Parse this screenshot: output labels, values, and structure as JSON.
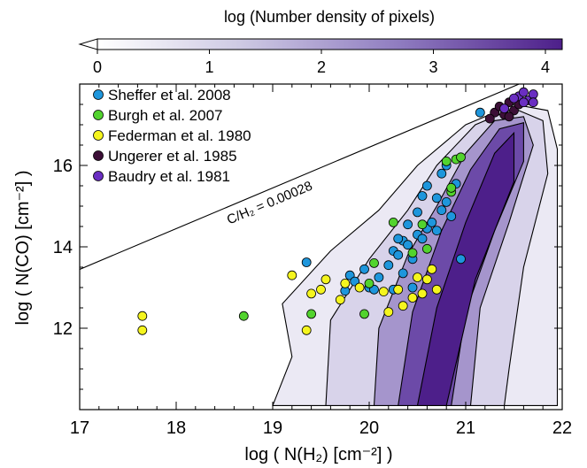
{
  "chart_data": {
    "type": "scatter",
    "title": "",
    "xlabel": "log ( N(H₂) [cm⁻²] )",
    "ylabel": "log ( N(CO) [cm⁻²] )",
    "xlim": [
      17,
      22
    ],
    "ylim": [
      10,
      18
    ],
    "x_ticks": [
      "17",
      "18",
      "19",
      "20",
      "21",
      "22"
    ],
    "y_ticks": [
      "12",
      "14",
      "16"
    ],
    "grid": false,
    "legend_position": "top-left",
    "colorbar": {
      "label": "log (Number density of pixels)",
      "ticks": [
        "0",
        "1",
        "2",
        "3",
        "4"
      ],
      "range": [
        0,
        4.15
      ],
      "colors": [
        "#ffffff",
        "#cfcbe4",
        "#8f7cc0",
        "#4d1f8a"
      ]
    },
    "annotation": {
      "text": "C/H₂ = 0.00028",
      "slope": 1,
      "log_ratio": -3.553
    },
    "density_contours": [
      {
        "level": 0.5,
        "fill": "#ebe9f4",
        "points": [
          [
            19.0,
            10.1
          ],
          [
            19.2,
            11.3
          ],
          [
            19.1,
            12.6
          ],
          [
            19.6,
            13.9
          ],
          [
            20.1,
            14.9
          ],
          [
            20.5,
            16.0
          ],
          [
            21.0,
            17.0
          ],
          [
            21.5,
            17.5
          ],
          [
            21.85,
            17.35
          ],
          [
            21.95,
            16.4
          ],
          [
            21.95,
            14.5
          ],
          [
            21.95,
            12.0
          ],
          [
            21.95,
            10.1
          ]
        ]
      },
      {
        "level": 1.0,
        "fill": "#d8d3ea",
        "points": [
          [
            19.55,
            10.1
          ],
          [
            19.6,
            12.2
          ],
          [
            20.0,
            13.7
          ],
          [
            20.4,
            14.9
          ],
          [
            20.7,
            16.0
          ],
          [
            21.1,
            17.0
          ],
          [
            21.5,
            17.4
          ],
          [
            21.8,
            17.1
          ],
          [
            21.85,
            15.8
          ],
          [
            21.6,
            13.5
          ],
          [
            21.45,
            11.0
          ],
          [
            21.4,
            10.1
          ]
        ]
      },
      {
        "level": 2.0,
        "fill": "#a595cc",
        "points": [
          [
            20.05,
            10.1
          ],
          [
            20.1,
            12.0
          ],
          [
            20.4,
            13.8
          ],
          [
            20.7,
            15.0
          ],
          [
            21.0,
            16.3
          ],
          [
            21.3,
            17.1
          ],
          [
            21.6,
            17.2
          ],
          [
            21.7,
            16.5
          ],
          [
            21.45,
            14.6
          ],
          [
            21.15,
            12.5
          ],
          [
            21.05,
            10.1
          ]
        ]
      },
      {
        "level": 3.0,
        "fill": "#6c4aa8",
        "points": [
          [
            20.3,
            10.1
          ],
          [
            20.45,
            12.4
          ],
          [
            20.75,
            14.4
          ],
          [
            21.05,
            15.9
          ],
          [
            21.35,
            16.9
          ],
          [
            21.6,
            17.05
          ],
          [
            21.6,
            16.1
          ],
          [
            21.3,
            14.4
          ],
          [
            21.0,
            12.4
          ],
          [
            20.85,
            10.1
          ]
        ]
      },
      {
        "level": 3.6,
        "fill": "#4d1f8a",
        "points": [
          [
            20.5,
            10.1
          ],
          [
            20.7,
            12.5
          ],
          [
            21.0,
            14.6
          ],
          [
            21.3,
            16.3
          ],
          [
            21.5,
            16.8
          ],
          [
            21.5,
            15.6
          ],
          [
            21.1,
            13.2
          ],
          [
            20.8,
            10.1
          ]
        ]
      }
    ],
    "series": [
      {
        "name": "Sheffer et al. 2008",
        "color": "#1e96dc",
        "points": [
          [
            19.35,
            13.62
          ],
          [
            19.95,
            13.45
          ],
          [
            19.8,
            13.3
          ],
          [
            19.85,
            13.15
          ],
          [
            20.0,
            13.0
          ],
          [
            20.05,
            12.95
          ],
          [
            19.75,
            12.92
          ],
          [
            20.1,
            13.25
          ],
          [
            20.2,
            13.55
          ],
          [
            20.25,
            13.9
          ],
          [
            20.3,
            13.8
          ],
          [
            20.35,
            14.15
          ],
          [
            20.4,
            14.05
          ],
          [
            20.45,
            13.7
          ],
          [
            20.5,
            14.3
          ],
          [
            20.55,
            14.2
          ],
          [
            20.6,
            14.45
          ],
          [
            20.65,
            14.6
          ],
          [
            20.7,
            14.4
          ],
          [
            20.75,
            14.9
          ],
          [
            20.8,
            15.1
          ],
          [
            20.85,
            14.75
          ],
          [
            20.55,
            15.25
          ],
          [
            20.6,
            15.5
          ],
          [
            20.7,
            15.2
          ],
          [
            20.75,
            15.8
          ],
          [
            20.8,
            16.0
          ],
          [
            20.9,
            15.55
          ],
          [
            20.95,
            13.7
          ],
          [
            20.35,
            13.35
          ],
          [
            20.45,
            13.0
          ],
          [
            20.25,
            12.95
          ],
          [
            20.4,
            14.55
          ],
          [
            20.5,
            14.85
          ],
          [
            20.3,
            14.2
          ],
          [
            21.15,
            17.3
          ]
        ]
      },
      {
        "name": "Burgh et al. 2007",
        "color": "#52d32e",
        "points": [
          [
            18.7,
            12.3
          ],
          [
            19.4,
            12.35
          ],
          [
            19.95,
            12.35
          ],
          [
            20.05,
            13.6
          ],
          [
            20.0,
            13.1
          ],
          [
            20.25,
            14.6
          ],
          [
            20.55,
            14.55
          ],
          [
            20.6,
            13.95
          ],
          [
            20.85,
            15.35
          ],
          [
            20.85,
            15.45
          ],
          [
            20.8,
            16.1
          ],
          [
            20.9,
            16.15
          ],
          [
            20.95,
            16.2
          ],
          [
            20.45,
            13.85
          ]
        ]
      },
      {
        "name": "Federman et al. 1980",
        "color": "#f5f51e",
        "points": [
          [
            17.65,
            12.3
          ],
          [
            17.65,
            11.95
          ],
          [
            19.35,
            11.95
          ],
          [
            19.2,
            13.3
          ],
          [
            19.4,
            12.85
          ],
          [
            19.5,
            12.95
          ],
          [
            19.55,
            13.2
          ],
          [
            19.7,
            12.7
          ],
          [
            19.75,
            13.1
          ],
          [
            19.9,
            13.0
          ],
          [
            20.15,
            12.9
          ],
          [
            20.3,
            12.95
          ],
          [
            20.35,
            12.55
          ],
          [
            20.45,
            12.75
          ],
          [
            20.55,
            12.85
          ],
          [
            20.6,
            13.2
          ],
          [
            20.7,
            12.95
          ],
          [
            20.65,
            13.45
          ],
          [
            20.5,
            13.25
          ],
          [
            20.2,
            12.4
          ]
        ]
      },
      {
        "name": "Ungerer et al. 1985",
        "color": "#3c0f37",
        "points": [
          [
            21.3,
            17.3
          ],
          [
            21.35,
            17.45
          ],
          [
            21.4,
            17.25
          ],
          [
            21.45,
            17.55
          ],
          [
            21.5,
            17.35
          ],
          [
            21.55,
            17.5
          ],
          [
            21.45,
            17.2
          ],
          [
            21.25,
            17.15
          ]
        ]
      },
      {
        "name": "Baudry et al. 1981",
        "color": "#6a2ec2",
        "points": [
          [
            21.55,
            17.7
          ],
          [
            21.6,
            17.8
          ],
          [
            21.65,
            17.6
          ],
          [
            21.7,
            17.75
          ],
          [
            21.6,
            17.55
          ],
          [
            21.5,
            17.65
          ],
          [
            21.7,
            17.55
          ],
          [
            21.4,
            17.4
          ]
        ]
      }
    ]
  }
}
